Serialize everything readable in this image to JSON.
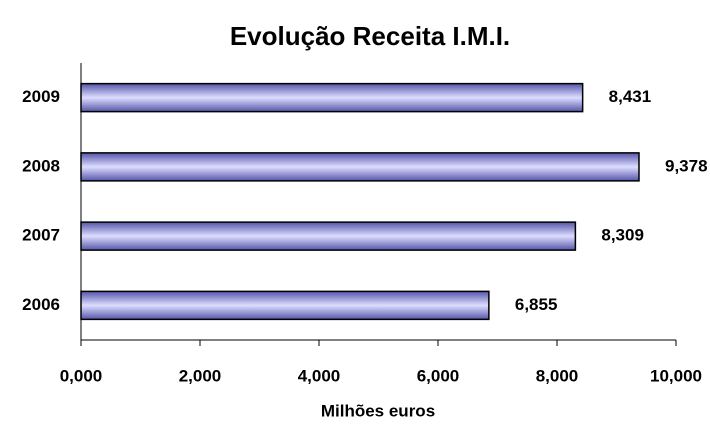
{
  "chart_data": {
    "type": "bar",
    "orientation": "horizontal",
    "title": "Evolução Receita I.M.I.",
    "x_label": "Milhões euros",
    "categories": [
      "2009",
      "2008",
      "2007",
      "2006"
    ],
    "values": [
      8.431,
      9.378,
      8.309,
      6.855
    ],
    "value_labels": [
      "8,431",
      "9,378",
      "8,309",
      "6,855"
    ],
    "color": "#9999ff",
    "xlim": [
      0,
      10
    ],
    "xticks": [
      {
        "value": 0,
        "label": "0,000"
      },
      {
        "value": 2,
        "label": "2,000"
      },
      {
        "value": 4,
        "label": "4,000"
      },
      {
        "value": 6,
        "label": "6,000"
      },
      {
        "value": 8,
        "label": "8,000"
      },
      {
        "value": 10,
        "label": "10,000"
      }
    ],
    "grid": false
  }
}
